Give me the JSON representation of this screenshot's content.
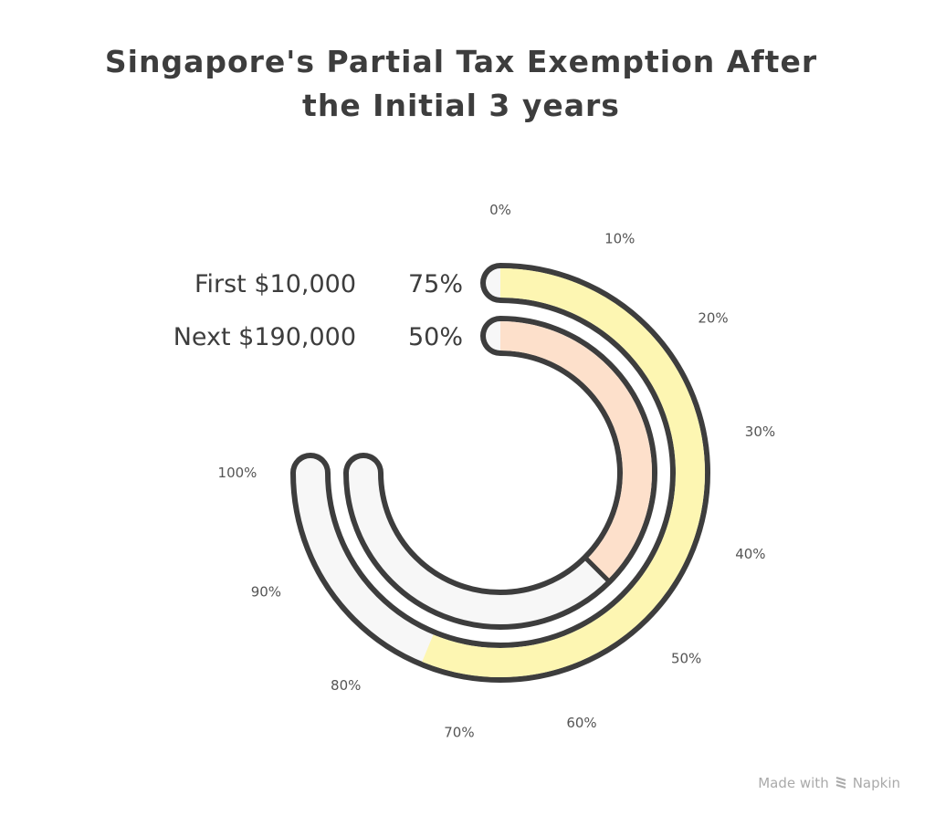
{
  "chart_data": {
    "type": "radial-bar",
    "title": [
      "Singapore's Partial Tax Exemption After",
      "the Initial 3 years"
    ],
    "range": [
      0,
      100
    ],
    "sweep_degrees": 270,
    "tick_labels": [
      "0%",
      "10%",
      "20%",
      "30%",
      "40%",
      "50%",
      "60%",
      "70%",
      "80%",
      "90%",
      "100%"
    ],
    "series": [
      {
        "name": "First $10,000",
        "value": 75,
        "value_label": "75%",
        "color": "#fdf6b2"
      },
      {
        "name": "Next $190,000",
        "value": 50,
        "value_label": "50%",
        "color": "#fde0cb"
      }
    ],
    "track_color": "#f7f7f7",
    "outline_color": "#3d3d3d"
  },
  "footer": {
    "made_with": "Made with",
    "brand": "Napkin"
  }
}
